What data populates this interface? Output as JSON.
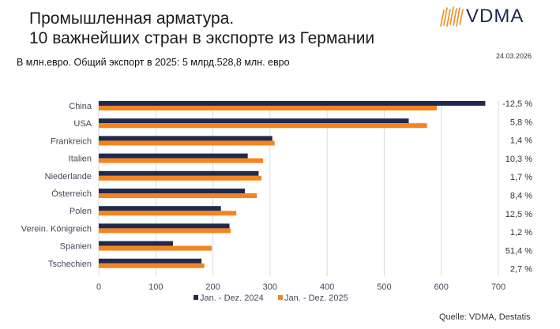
{
  "header": {
    "title_line1": "Промышленная арматура.",
    "title_line2": "10 важнейших стран в экспорте из Германии",
    "subtitle": "В млн.евро. Общий экспорт в 2025: 5 млрд.528,8 млн. евро",
    "date": "24.03.2026",
    "logo_text": "VDMA"
  },
  "footer": {
    "source": "Quelle: VDMA, Destatis"
  },
  "colors": {
    "series_2024": "#1f2a4e",
    "series_2025": "#f5841f",
    "grid": "#d9d9d9",
    "logo_accent": "#f08a1c"
  },
  "chart_data": {
    "type": "bar",
    "orientation": "horizontal",
    "title": "10 важнейших стран в экспорте из Германии",
    "xlabel": "",
    "ylabel": "",
    "xlim": [
      0,
      700
    ],
    "xticks": [
      0,
      100,
      200,
      300,
      400,
      500,
      600,
      700
    ],
    "grid": true,
    "legend_position": "bottom",
    "categories": [
      "China",
      "USA",
      "Frankreich",
      "Italien",
      "Niederlande",
      "Österreich",
      "Polen",
      "Verein. Königreich",
      "Spanien",
      "Tschechien"
    ],
    "series": [
      {
        "name": "Jan. - Dez. 2024",
        "values": [
          677,
          543,
          304,
          261,
          280,
          256,
          214,
          229,
          130,
          180
        ]
      },
      {
        "name": "Jan. - Dez. 2025",
        "values": [
          592,
          575,
          308,
          288,
          285,
          277,
          241,
          231,
          198,
          185
        ]
      }
    ],
    "change_labels": [
      "-12,5 %",
      "5,8 %",
      "1,4 %",
      "10,3 %",
      "1,7 %",
      "8,4 %",
      "12,5 %",
      "1,2 %",
      "51,4 %",
      "2,7 %"
    ]
  }
}
